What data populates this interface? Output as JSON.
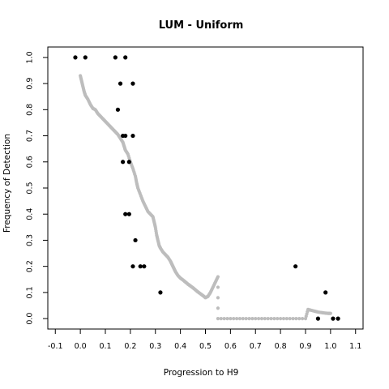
{
  "chart_data": {
    "type": "scatter",
    "title": "LUM - Uniform",
    "xlabel": "Progression to H9",
    "ylabel": "Frequency of Detection",
    "xlim": [
      -0.13,
      1.13
    ],
    "ylim": [
      -0.04,
      1.04
    ],
    "xticks": [
      -0.1,
      0.0,
      0.1,
      0.2,
      0.3,
      0.4,
      0.5,
      0.6,
      0.7,
      0.8,
      0.9,
      1.0,
      1.1
    ],
    "xtick_labels": [
      "-0.1",
      "0.0",
      "0.1",
      "0.2",
      "0.3",
      "0.4",
      "0.5",
      "0.6",
      "0.7",
      "0.8",
      "0.9",
      "1.0",
      "1.1"
    ],
    "yticks": [
      0.0,
      0.1,
      0.2,
      0.3,
      0.4,
      0.5,
      0.6,
      0.7,
      0.8,
      0.9,
      1.0
    ],
    "ytick_labels": [
      "0.0",
      "0.1",
      "0.2",
      "0.3",
      "0.4",
      "0.5",
      "0.6",
      "0.7",
      "0.8",
      "0.9",
      "1.0"
    ],
    "grid": false,
    "colors": {
      "observed": "#000000",
      "smooth": "#bdbdbd"
    },
    "series": [
      {
        "color": "#000000",
        "marker": "filled-circle",
        "points": [
          [
            -0.02,
            1.0
          ],
          [
            0.02,
            1.0
          ],
          [
            0.14,
            1.0
          ],
          [
            0.18,
            1.0
          ],
          [
            0.16,
            0.9
          ],
          [
            0.21,
            0.9
          ],
          [
            0.15,
            0.8
          ],
          [
            0.17,
            0.7
          ],
          [
            0.18,
            0.7
          ],
          [
            0.21,
            0.7
          ],
          [
            0.17,
            0.6
          ],
          [
            0.195,
            0.6
          ],
          [
            0.18,
            0.4
          ],
          [
            0.195,
            0.4
          ],
          [
            0.22,
            0.3
          ],
          [
            0.21,
            0.2
          ],
          [
            0.24,
            0.2
          ],
          [
            0.255,
            0.2
          ],
          [
            0.86,
            0.2
          ],
          [
            0.32,
            0.1
          ],
          [
            0.98,
            0.1
          ],
          [
            0.95,
            0.0
          ],
          [
            1.01,
            0.0
          ],
          [
            1.03,
            0.0
          ]
        ]
      },
      {
        "color": "#bdbdbd",
        "marker": "small-dot",
        "points": [
          [
            0.0,
            0.93
          ],
          [
            0.005,
            0.91
          ],
          [
            0.01,
            0.89
          ],
          [
            0.015,
            0.87
          ],
          [
            0.02,
            0.855
          ],
          [
            0.03,
            0.84
          ],
          [
            0.04,
            0.82
          ],
          [
            0.05,
            0.805
          ],
          [
            0.06,
            0.8
          ],
          [
            0.07,
            0.785
          ],
          [
            0.08,
            0.775
          ],
          [
            0.09,
            0.765
          ],
          [
            0.1,
            0.755
          ],
          [
            0.11,
            0.745
          ],
          [
            0.12,
            0.735
          ],
          [
            0.13,
            0.725
          ],
          [
            0.14,
            0.715
          ],
          [
            0.15,
            0.705
          ],
          [
            0.16,
            0.69
          ],
          [
            0.17,
            0.675
          ],
          [
            0.175,
            0.66
          ],
          [
            0.18,
            0.645
          ],
          [
            0.19,
            0.63
          ],
          [
            0.2,
            0.6
          ],
          [
            0.21,
            0.575
          ],
          [
            0.22,
            0.545
          ],
          [
            0.225,
            0.52
          ],
          [
            0.23,
            0.5
          ],
          [
            0.24,
            0.475
          ],
          [
            0.25,
            0.45
          ],
          [
            0.26,
            0.43
          ],
          [
            0.27,
            0.41
          ],
          [
            0.28,
            0.4
          ],
          [
            0.29,
            0.39
          ],
          [
            0.295,
            0.37
          ],
          [
            0.3,
            0.35
          ],
          [
            0.305,
            0.32
          ],
          [
            0.31,
            0.3
          ],
          [
            0.315,
            0.28
          ],
          [
            0.32,
            0.27
          ],
          [
            0.33,
            0.255
          ],
          [
            0.34,
            0.245
          ],
          [
            0.35,
            0.235
          ],
          [
            0.36,
            0.22
          ],
          [
            0.365,
            0.21
          ],
          [
            0.37,
            0.2
          ],
          [
            0.375,
            0.19
          ],
          [
            0.38,
            0.18
          ],
          [
            0.39,
            0.165
          ],
          [
            0.4,
            0.155
          ],
          [
            0.41,
            0.148
          ],
          [
            0.42,
            0.14
          ],
          [
            0.43,
            0.132
          ],
          [
            0.44,
            0.125
          ],
          [
            0.45,
            0.118
          ],
          [
            0.46,
            0.11
          ],
          [
            0.47,
            0.102
          ],
          [
            0.48,
            0.095
          ],
          [
            0.49,
            0.088
          ],
          [
            0.5,
            0.08
          ],
          [
            0.51,
            0.085
          ],
          [
            0.52,
            0.1
          ],
          [
            0.53,
            0.12
          ],
          [
            0.54,
            0.14
          ],
          [
            0.55,
            0.16
          ],
          [
            0.55,
            0.0
          ],
          [
            0.6,
            0.0
          ],
          [
            0.65,
            0.0
          ],
          [
            0.7,
            0.0
          ],
          [
            0.75,
            0.0
          ],
          [
            0.8,
            0.0
          ],
          [
            0.85,
            0.0
          ],
          [
            0.9,
            0.0
          ],
          [
            0.91,
            0.035
          ],
          [
            0.93,
            0.03
          ],
          [
            0.95,
            0.025
          ],
          [
            0.97,
            0.022
          ],
          [
            0.99,
            0.02
          ],
          [
            1.0,
            0.02
          ]
        ]
      }
    ]
  }
}
